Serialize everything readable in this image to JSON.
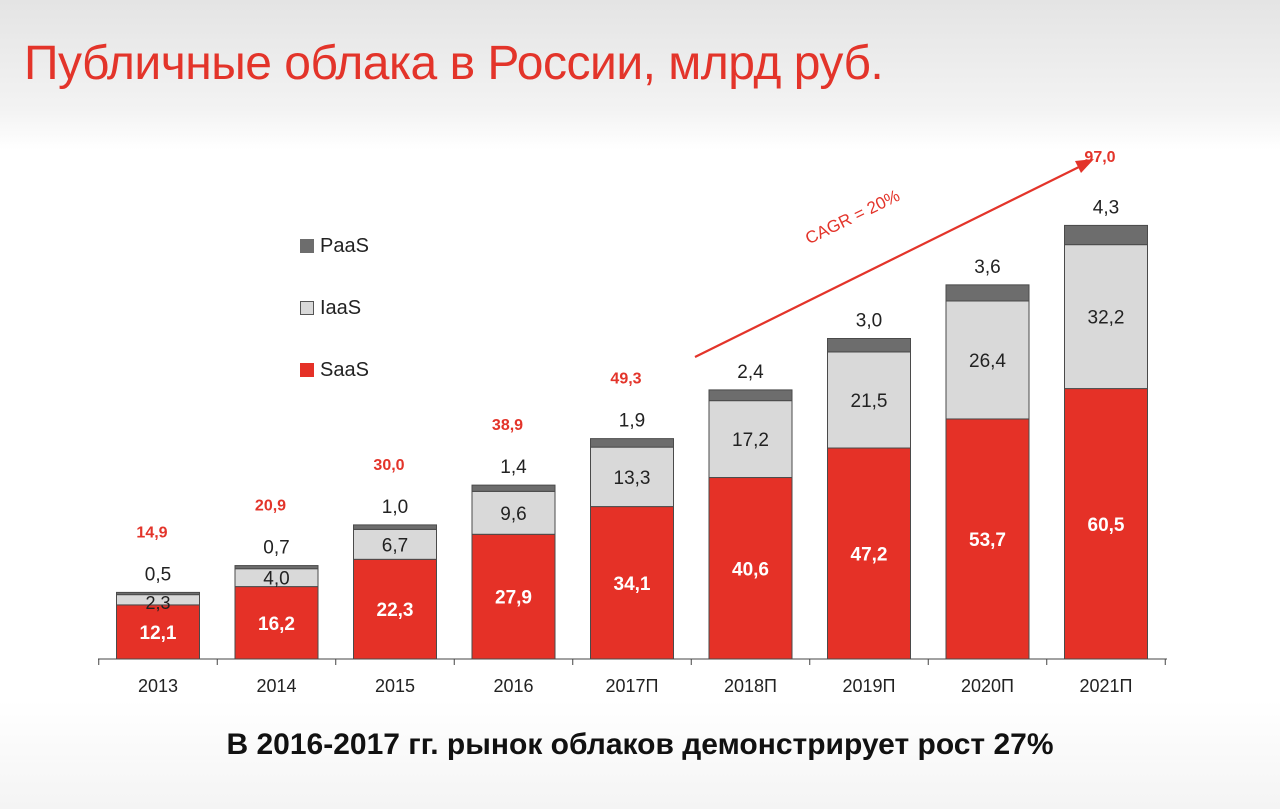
{
  "page": {
    "title": "Публичные облака в России, млрд руб.",
    "footer": "В 2016-2017 гг. рынок облаков демонстрирует рост 27%",
    "cagr_label": "CAGR = 20%"
  },
  "colors": {
    "title": "#e3342a",
    "saas": "#e53127",
    "iaas": "#d9d9d9",
    "paas": "#6d6d6d",
    "total_label": "#e3342a",
    "arrow": "#e3342a"
  },
  "chart_data": {
    "type": "bar",
    "stacked": true,
    "categories": [
      "2013",
      "2014",
      "2015",
      "2016",
      "2017П",
      "2018П",
      "2019П",
      "2020П",
      "2021П"
    ],
    "series": [
      {
        "name": "SaaS",
        "values": [
          12.1,
          16.2,
          22.3,
          27.9,
          34.1,
          40.6,
          47.2,
          53.7,
          60.5
        ],
        "labels": [
          "12,1",
          "16,2",
          "22,3",
          "27,9",
          "34,1",
          "40,6",
          "47,2",
          "53,7",
          "60,5"
        ]
      },
      {
        "name": "IaaS",
        "values": [
          2.3,
          4.0,
          6.7,
          9.6,
          13.3,
          17.2,
          21.5,
          26.4,
          32.2
        ],
        "labels": [
          "2,3",
          "4,0",
          "6,7",
          "9,6",
          "13,3",
          "17,2",
          "21,5",
          "26,4",
          "32,2"
        ]
      },
      {
        "name": "PaaS",
        "values": [
          0.5,
          0.7,
          1.0,
          1.4,
          1.9,
          2.4,
          3.0,
          3.6,
          4.3
        ],
        "labels": [
          "0,5",
          "0,7",
          "1,0",
          "1,4",
          "1,9",
          "2,4",
          "3,0",
          "3,6",
          "4,3"
        ]
      }
    ],
    "totals": [
      14.9,
      20.9,
      30.0,
      38.9,
      49.3,
      null,
      null,
      null,
      97.0
    ],
    "total_labels": [
      "14,9",
      "20,9",
      "30,0",
      "38,9",
      "49,3",
      "",
      "",
      "",
      "97,0"
    ],
    "legend": [
      "PaaS",
      "IaaS",
      "SaaS"
    ],
    "legend_position": "top-left",
    "ylim": [
      0,
      100
    ],
    "grid": false,
    "title": "",
    "xlabel": "",
    "ylabel": ""
  }
}
